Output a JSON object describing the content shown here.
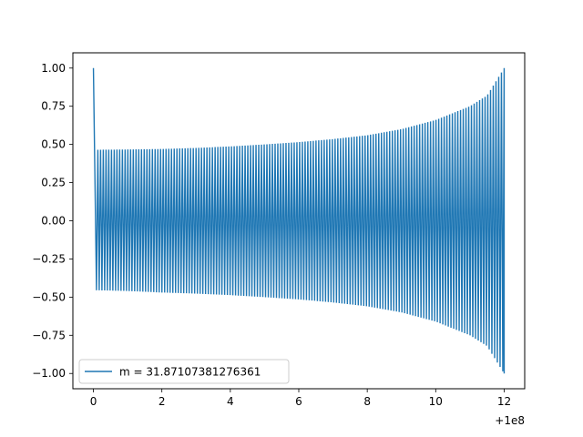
{
  "chart_data": {
    "type": "line",
    "title": "",
    "xlabel": "",
    "ylabel": "",
    "x_offset_label": "+1e8",
    "xlim": [
      -0.6,
      12.6
    ],
    "ylim": [
      -1.1,
      1.1
    ],
    "x_ticks": [
      0,
      2,
      4,
      6,
      8,
      10,
      12
    ],
    "x_tick_labels": [
      "0",
      "2",
      "4",
      "6",
      "8",
      "10",
      "12"
    ],
    "y_ticks": [
      -1.0,
      -0.75,
      -0.5,
      -0.25,
      0.0,
      0.25,
      0.5,
      0.75,
      1.0
    ],
    "y_tick_labels": [
      "−1.00",
      "−0.75",
      "−0.50",
      "−0.25",
      "0.00",
      "0.25",
      "0.50",
      "0.75",
      "1.00"
    ],
    "grid": false,
    "legend_position": "lower-left",
    "series": [
      {
        "name": "m = 31.87107381276361",
        "color": "#1f77b4",
        "envelope_x": [
          0,
          0.1,
          1,
          2,
          3,
          4,
          5,
          6,
          7,
          8,
          9,
          10,
          11,
          11.5,
          12
        ],
        "envelope_upper": [
          1.0,
          0.465,
          0.467,
          0.47,
          0.477,
          0.487,
          0.5,
          0.515,
          0.535,
          0.56,
          0.6,
          0.66,
          0.75,
          0.82,
          1.0
        ],
        "envelope_lower": [
          -0.455,
          -0.455,
          -0.46,
          -0.47,
          -0.477,
          -0.487,
          -0.5,
          -0.515,
          -0.535,
          -0.56,
          -0.6,
          -0.66,
          -0.75,
          -0.82,
          -1.0
        ]
      }
    ]
  }
}
